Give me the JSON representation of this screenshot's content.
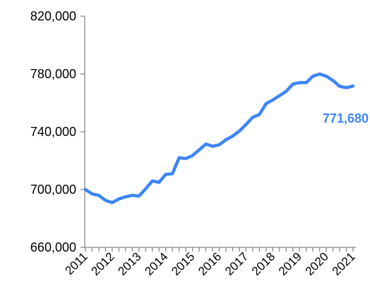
{
  "chart_data": {
    "type": "line",
    "x": [
      "2011",
      null,
      null,
      null,
      "2012",
      null,
      null,
      null,
      "2013",
      null,
      null,
      null,
      "2014",
      null,
      null,
      null,
      "2015",
      null,
      null,
      null,
      "2016",
      null,
      null,
      null,
      "2017",
      null,
      null,
      null,
      "2018",
      null,
      null,
      null,
      "2019",
      null,
      null,
      null,
      "2020",
      null,
      null,
      null,
      "2021"
    ],
    "series": [
      {
        "color": "#3d85f5",
        "values": [
          700000,
          697000,
          696000,
          692500,
          691000,
          693500,
          695000,
          696000,
          695500,
          700500,
          706000,
          705000,
          710500,
          711000,
          722000,
          721500,
          723500,
          727500,
          731500,
          730000,
          731000,
          734500,
          737000,
          740500,
          745000,
          750000,
          752000,
          759500,
          762000,
          765000,
          768000,
          773000,
          774000,
          774000,
          778500,
          780000,
          778500,
          775500,
          771500,
          770500,
          771680
        ],
        "value_labels": [
          null,
          null,
          null,
          null,
          null,
          null,
          null,
          null,
          null,
          null,
          null,
          null,
          null,
          null,
          null,
          null,
          null,
          null,
          null,
          null,
          null,
          null,
          null,
          null,
          null,
          null,
          null,
          null,
          null,
          null,
          null,
          null,
          null,
          null,
          null,
          null,
          null,
          null,
          null,
          null,
          "771,680"
        ]
      }
    ],
    "ylim": [
      660000,
      820000
    ],
    "yticks": [
      {
        "value": 660000,
        "label": "660,000"
      },
      {
        "value": 700000,
        "label": "700,000"
      },
      {
        "value": 740000,
        "label": "740,000"
      },
      {
        "value": 780000,
        "label": "780,000"
      },
      {
        "value": 820000,
        "label": "820,000"
      }
    ],
    "grid": false
  }
}
